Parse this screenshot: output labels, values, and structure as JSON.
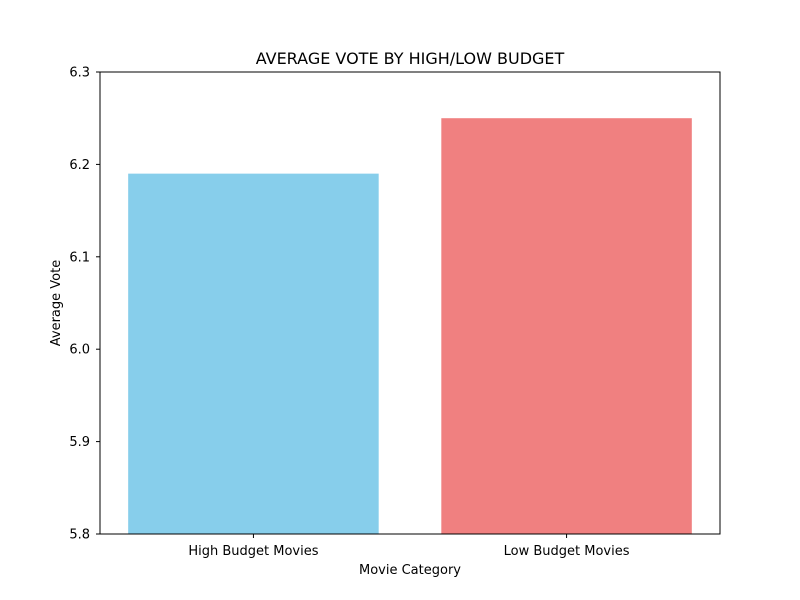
{
  "chart_data": {
    "type": "bar",
    "title": "AVERAGE VOTE BY HIGH/LOW BUDGET",
    "xlabel": "Movie Category",
    "ylabel": "Average Vote",
    "categories": [
      "High Budget Movies",
      "Low Budget Movies"
    ],
    "values": [
      6.19,
      6.25
    ],
    "colors": [
      "#87CEEB",
      "#F08080"
    ],
    "ylim": [
      5.8,
      6.3
    ],
    "yticks": [
      5.8,
      5.9,
      6.0,
      6.1,
      6.2,
      6.3
    ],
    "ytick_labels": [
      "5.8",
      "5.9",
      "6.0",
      "6.1",
      "6.2",
      "6.3"
    ],
    "grid": false,
    "legend": "none"
  }
}
